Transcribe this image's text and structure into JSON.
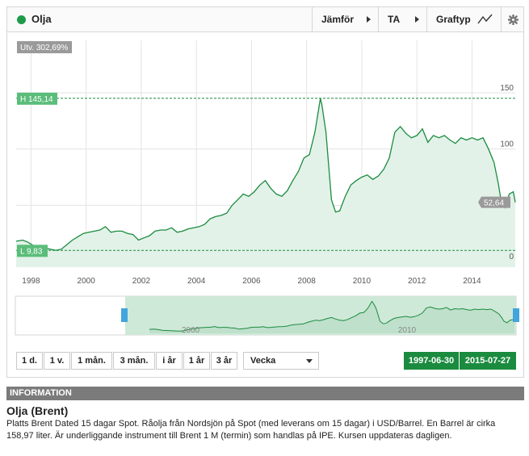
{
  "toolbar": {
    "title": "Olja",
    "status_color": "#1e9b4a",
    "compare_label": "Jämför",
    "ta_label": "TA",
    "graph_type_label": "Graftyp",
    "graph_type_icon": "line-chart-icon",
    "settings_icon": "gear-icon"
  },
  "chart": {
    "change_badge": "Utv. 302,69%",
    "high_label": "H 145,14",
    "low_label": "L 9,83",
    "last_label": "52,64",
    "accent_color": "#1b8b3f",
    "fill_color": "#e2f2e8"
  },
  "chart_data": {
    "type": "area",
    "x": [
      1997.46,
      1997.7,
      1997.9,
      1998.1,
      1998.3,
      1998.5,
      1998.7,
      1998.9,
      1999.1,
      1999.3,
      1999.5,
      1999.7,
      1999.9,
      2000.1,
      2000.3,
      2000.5,
      2000.7,
      2000.9,
      2001.1,
      2001.3,
      2001.5,
      2001.7,
      2001.9,
      2002.1,
      2002.3,
      2002.5,
      2002.7,
      2002.9,
      2003.1,
      2003.3,
      2003.5,
      2003.7,
      2003.9,
      2004.1,
      2004.3,
      2004.5,
      2004.7,
      2004.9,
      2005.1,
      2005.3,
      2005.5,
      2005.7,
      2005.9,
      2006.1,
      2006.3,
      2006.5,
      2006.7,
      2006.9,
      2007.1,
      2007.3,
      2007.5,
      2007.7,
      2007.9,
      2008.1,
      2008.3,
      2008.5,
      2008.55,
      2008.7,
      2008.9,
      2009.05,
      2009.2,
      2009.4,
      2009.6,
      2009.8,
      2010.0,
      2010.2,
      2010.4,
      2010.6,
      2010.8,
      2011.0,
      2011.2,
      2011.4,
      2011.6,
      2011.8,
      2012.0,
      2012.2,
      2012.4,
      2012.6,
      2012.8,
      2013.0,
      2013.2,
      2013.4,
      2013.6,
      2013.8,
      2014.0,
      2014.2,
      2014.4,
      2014.6,
      2014.8,
      2014.95,
      2015.05,
      2015.2,
      2015.35,
      2015.5,
      2015.57
    ],
    "values": [
      18,
      19,
      17,
      14,
      13,
      12,
      11,
      10,
      11,
      15,
      19,
      22,
      25,
      26,
      27,
      28,
      31,
      26,
      27,
      27,
      25,
      24,
      19,
      21,
      23,
      27,
      28,
      28,
      30,
      26,
      27,
      29,
      30,
      31,
      33,
      38,
      40,
      41,
      43,
      50,
      55,
      60,
      58,
      62,
      68,
      72,
      65,
      60,
      58,
      63,
      72,
      80,
      92,
      95,
      115,
      145,
      140,
      115,
      55,
      44,
      45,
      58,
      68,
      72,
      75,
      77,
      73,
      76,
      82,
      92,
      115,
      120,
      114,
      110,
      112,
      118,
      106,
      112,
      110,
      112,
      108,
      105,
      110,
      108,
      110,
      108,
      110,
      100,
      88,
      70,
      55,
      48,
      60,
      62,
      52.64
    ],
    "ylim": [
      0,
      160
    ],
    "y_ticks": [
      0,
      50,
      100,
      150
    ],
    "y_tick_labels": [
      "0",
      "",
      "100",
      "150"
    ],
    "x_ticks": [
      1998,
      2000,
      2002,
      2004,
      2006,
      2008,
      2010,
      2012,
      2014
    ],
    "x_tick_labels": [
      "1998",
      "2000",
      "2002",
      "2004",
      "2006",
      "2008",
      "2010",
      "2012",
      "2014"
    ],
    "high": 145.14,
    "low": 9.83,
    "last": 52.64,
    "grid": true,
    "navigator_labels": [
      "2000",
      "2010"
    ]
  },
  "periods": [
    "1 d.",
    "1 v.",
    "1 mån.",
    "3 mån.",
    "i år",
    "1 år",
    "3 år"
  ],
  "interval_select": "Vecka",
  "date_range": {
    "from": "1997-06-30",
    "to": "2015-07-27"
  },
  "information": {
    "header": "INFORMATION",
    "title": "Olja (Brent)",
    "text": "Platts Brent Dated 15 dagar Spot. Råolja från Nordsjön på Spot (med leverans om 15 dagar) i USD/Barrel. En Barrel är cirka 158,97 liter. Är underliggande instrument till Brent 1 M (termin) som handlas på IPE. Kursen uppdateras dagligen."
  }
}
